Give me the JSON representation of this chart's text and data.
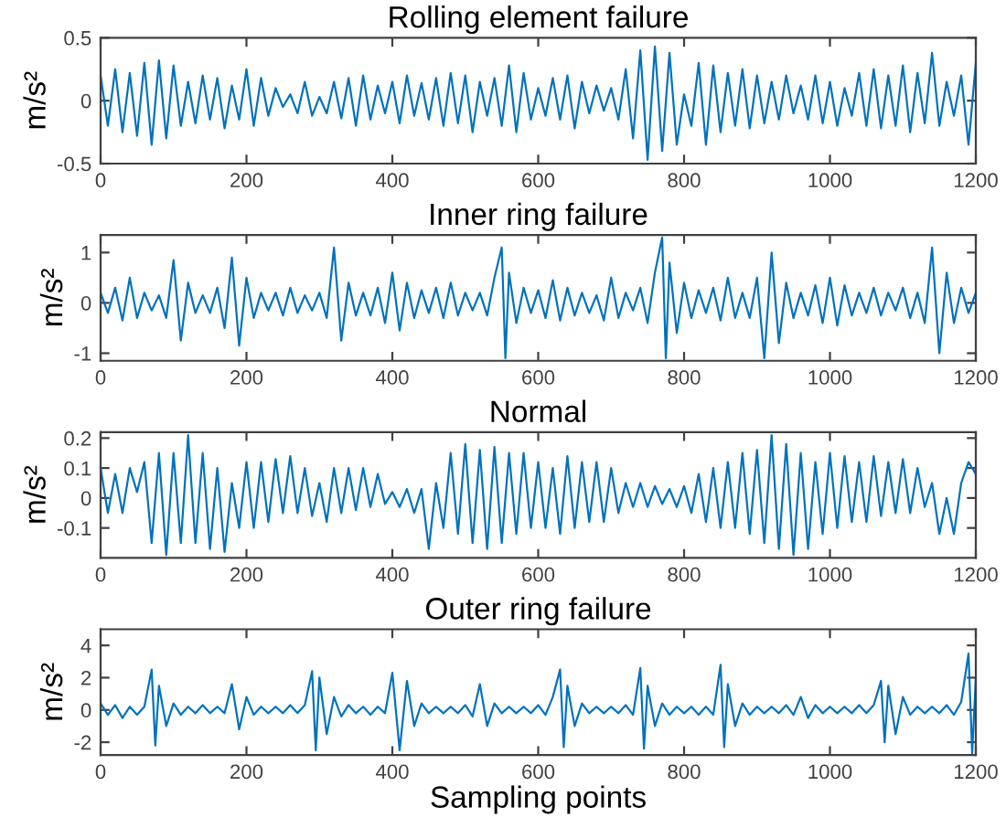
{
  "chart_data": [
    {
      "type": "line",
      "title": "Rolling element failure",
      "ylabel": "m/s²",
      "xlim": [
        0,
        1200
      ],
      "ylim": [
        -0.5,
        0.5
      ],
      "xticks": [
        0,
        200,
        400,
        600,
        800,
        1000,
        1200
      ],
      "yticks": [
        -0.5,
        0,
        0.5
      ],
      "grid": false,
      "legend": false,
      "series": [
        {
          "color": "#0072bd",
          "x": [
            0,
            10,
            20,
            30,
            40,
            50,
            60,
            70,
            80,
            90,
            100,
            110,
            120,
            130,
            140,
            150,
            160,
            170,
            180,
            190,
            200,
            210,
            220,
            230,
            240,
            250,
            260,
            270,
            280,
            290,
            300,
            310,
            320,
            330,
            340,
            350,
            360,
            370,
            380,
            390,
            400,
            410,
            420,
            430,
            440,
            450,
            460,
            470,
            480,
            490,
            500,
            510,
            520,
            530,
            540,
            550,
            560,
            570,
            580,
            590,
            600,
            610,
            620,
            630,
            640,
            650,
            660,
            670,
            680,
            690,
            700,
            710,
            720,
            730,
            740,
            750,
            760,
            770,
            780,
            790,
            800,
            810,
            820,
            830,
            840,
            850,
            860,
            870,
            880,
            890,
            900,
            910,
            920,
            930,
            940,
            950,
            960,
            970,
            980,
            990,
            1000,
            1010,
            1020,
            1030,
            1040,
            1050,
            1060,
            1070,
            1080,
            1090,
            1100,
            1110,
            1120,
            1130,
            1140,
            1150,
            1160,
            1170,
            1180,
            1190,
            1200
          ],
          "values": [
            0.2,
            -0.2,
            0.25,
            -0.25,
            0.22,
            -0.28,
            0.3,
            -0.35,
            0.32,
            -0.3,
            0.28,
            -0.2,
            0.15,
            -0.18,
            0.2,
            -0.15,
            0.18,
            -0.22,
            0.12,
            -0.15,
            0.25,
            -0.2,
            0.18,
            -0.12,
            0.1,
            -0.05,
            0.05,
            -0.1,
            0.15,
            -0.12,
            0.03,
            -0.1,
            0.15,
            -0.14,
            0.18,
            -0.2,
            0.2,
            -0.15,
            0.12,
            -0.1,
            0.15,
            -0.18,
            0.2,
            -0.12,
            0.14,
            -0.15,
            0.18,
            -0.2,
            0.22,
            -0.18,
            0.2,
            -0.25,
            0.15,
            -0.12,
            0.18,
            -0.2,
            0.28,
            -0.25,
            0.22,
            -0.15,
            0.1,
            -0.12,
            0.18,
            -0.15,
            0.2,
            -0.22,
            0.15,
            -0.1,
            0.12,
            -0.08,
            0.1,
            -0.15,
            0.25,
            -0.3,
            0.4,
            -0.47,
            0.43,
            -0.4,
            0.38,
            -0.35,
            0.05,
            -0.2,
            0.3,
            -0.35,
            0.28,
            -0.25,
            0.22,
            -0.2,
            0.25,
            -0.22,
            0.2,
            -0.18,
            0.15,
            -0.15,
            0.2,
            -0.1,
            0.12,
            -0.15,
            0.2,
            -0.18,
            0.15,
            -0.2,
            0.1,
            -0.12,
            0.22,
            -0.2,
            0.25,
            -0.22,
            0.2,
            -0.2,
            0.28,
            -0.25,
            0.22,
            -0.18,
            0.38,
            -0.2,
            0.15,
            -0.12,
            0.2,
            -0.35,
            0.3
          ]
        }
      ]
    },
    {
      "type": "line",
      "title": "Inner ring failure",
      "ylabel": "m/s²",
      "xlim": [
        0,
        1200
      ],
      "ylim": [
        -1.15,
        1.35
      ],
      "xticks": [
        0,
        200,
        400,
        600,
        800,
        1000,
        1200
      ],
      "yticks": [
        -1,
        0,
        1
      ],
      "grid": false,
      "legend": false,
      "series": [
        {
          "color": "#0072bd",
          "x": [
            0,
            10,
            20,
            30,
            40,
            50,
            60,
            70,
            80,
            90,
            100,
            110,
            120,
            130,
            140,
            150,
            160,
            170,
            180,
            190,
            200,
            210,
            220,
            230,
            240,
            250,
            260,
            270,
            280,
            290,
            300,
            310,
            320,
            330,
            340,
            350,
            360,
            370,
            380,
            390,
            400,
            410,
            420,
            430,
            440,
            450,
            460,
            470,
            480,
            490,
            500,
            510,
            520,
            530,
            540,
            550,
            555,
            560,
            570,
            580,
            590,
            600,
            610,
            620,
            630,
            640,
            650,
            660,
            670,
            680,
            690,
            700,
            710,
            720,
            730,
            740,
            750,
            760,
            770,
            775,
            780,
            790,
            800,
            810,
            820,
            830,
            840,
            850,
            860,
            870,
            880,
            890,
            900,
            910,
            920,
            930,
            940,
            950,
            960,
            970,
            980,
            990,
            1000,
            1010,
            1020,
            1030,
            1040,
            1050,
            1060,
            1070,
            1080,
            1090,
            1100,
            1110,
            1120,
            1130,
            1140,
            1150,
            1160,
            1170,
            1180,
            1190,
            1200
          ],
          "values": [
            0.2,
            -0.2,
            0.3,
            -0.35,
            0.5,
            -0.3,
            0.2,
            -0.15,
            0.15,
            -0.3,
            0.85,
            -0.75,
            0.4,
            -0.2,
            0.15,
            -0.2,
            0.3,
            -0.5,
            0.9,
            -0.85,
            0.5,
            -0.3,
            0.2,
            -0.15,
            0.2,
            -0.25,
            0.3,
            -0.2,
            0.15,
            -0.15,
            0.2,
            -0.3,
            1.1,
            -0.75,
            0.4,
            -0.25,
            0.2,
            -0.25,
            0.3,
            -0.4,
            0.6,
            -0.55,
            0.4,
            -0.3,
            0.25,
            -0.2,
            0.3,
            -0.3,
            0.4,
            -0.25,
            0.2,
            -0.15,
            0.2,
            -0.25,
            0.5,
            1.1,
            -1.1,
            0.6,
            -0.4,
            0.3,
            -0.2,
            0.25,
            -0.3,
            0.45,
            -0.35,
            0.3,
            -0.25,
            0.2,
            -0.2,
            0.15,
            -0.35,
            0.5,
            -0.3,
            0.2,
            -0.15,
            0.3,
            -0.4,
            0.6,
            1.3,
            -1.1,
            0.8,
            -0.6,
            0.4,
            -0.3,
            0.25,
            -0.2,
            0.3,
            -0.35,
            0.5,
            -0.3,
            0.2,
            -0.3,
            0.5,
            -1.1,
            1.0,
            -0.8,
            0.4,
            -0.3,
            0.2,
            -0.25,
            0.35,
            -0.4,
            0.5,
            -0.45,
            0.35,
            -0.25,
            0.2,
            -0.2,
            0.3,
            -0.25,
            0.2,
            -0.15,
            0.3,
            -0.3,
            0.2,
            -0.4,
            1.1,
            -1.0,
            0.6,
            -0.4,
            0.3,
            -0.2,
            0.2
          ]
        }
      ]
    },
    {
      "type": "line",
      "title": "Normal",
      "ylabel": "m/s²",
      "xlim": [
        0,
        1200
      ],
      "ylim": [
        -0.2,
        0.22
      ],
      "xticks": [
        0,
        200,
        400,
        600,
        800,
        1000,
        1200
      ],
      "yticks": [
        -0.1,
        0,
        0.1,
        0.2
      ],
      "grid": false,
      "legend": false,
      "series": [
        {
          "color": "#0072bd",
          "x": [
            0,
            10,
            20,
            30,
            40,
            50,
            60,
            70,
            80,
            90,
            100,
            110,
            120,
            130,
            140,
            150,
            160,
            170,
            180,
            190,
            200,
            210,
            220,
            230,
            240,
            250,
            260,
            270,
            280,
            290,
            300,
            310,
            320,
            330,
            340,
            350,
            360,
            370,
            380,
            390,
            400,
            410,
            420,
            430,
            440,
            450,
            460,
            470,
            480,
            490,
            500,
            510,
            520,
            530,
            540,
            550,
            560,
            570,
            580,
            590,
            600,
            610,
            620,
            630,
            640,
            650,
            660,
            670,
            680,
            690,
            700,
            710,
            720,
            730,
            740,
            750,
            760,
            770,
            780,
            790,
            800,
            810,
            820,
            830,
            840,
            850,
            860,
            870,
            880,
            890,
            900,
            910,
            920,
            930,
            940,
            950,
            960,
            970,
            980,
            990,
            1000,
            1010,
            1020,
            1030,
            1040,
            1050,
            1060,
            1070,
            1080,
            1090,
            1100,
            1110,
            1120,
            1130,
            1140,
            1150,
            1160,
            1170,
            1180,
            1190,
            1200
          ],
          "values": [
            0.1,
            -0.05,
            0.08,
            -0.05,
            0.1,
            0.02,
            0.12,
            -0.15,
            0.15,
            -0.19,
            0.15,
            -0.15,
            0.21,
            -0.15,
            0.15,
            -0.17,
            0.1,
            -0.18,
            0.05,
            -0.1,
            0.12,
            -0.1,
            0.12,
            -0.08,
            0.13,
            -0.05,
            0.14,
            -0.05,
            0.1,
            -0.06,
            0.05,
            -0.08,
            0.1,
            -0.05,
            0.1,
            -0.04,
            0.1,
            -0.03,
            0.08,
            -0.02,
            0.02,
            -0.03,
            0.03,
            -0.05,
            0.03,
            -0.17,
            0.05,
            -0.1,
            0.15,
            -0.12,
            0.18,
            -0.15,
            0.16,
            -0.17,
            0.17,
            -0.15,
            0.15,
            -0.12,
            0.15,
            -0.1,
            0.12,
            -0.1,
            0.1,
            -0.12,
            0.14,
            -0.1,
            0.12,
            -0.08,
            0.12,
            -0.08,
            0.1,
            -0.05,
            0.05,
            -0.03,
            0.05,
            -0.03,
            0.04,
            -0.02,
            0.03,
            -0.03,
            0.04,
            -0.05,
            0.08,
            -0.08,
            0.1,
            -0.1,
            0.12,
            -0.1,
            0.15,
            -0.12,
            0.16,
            -0.15,
            0.21,
            -0.17,
            0.18,
            -0.19,
            0.15,
            -0.17,
            0.12,
            -0.12,
            0.15,
            -0.1,
            0.14,
            -0.08,
            0.12,
            -0.08,
            0.14,
            -0.06,
            0.12,
            -0.05,
            0.13,
            -0.05,
            0.1,
            -0.03,
            0.05,
            -0.12,
            0.0,
            -0.12,
            0.05,
            0.12,
            0.08
          ]
        }
      ]
    },
    {
      "type": "line",
      "title": "Outer ring failure",
      "ylabel": "m/s²",
      "xlabel": "Sampling points",
      "xlim": [
        0,
        1200
      ],
      "ylim": [
        -2.8,
        5
      ],
      "xticks": [
        0,
        200,
        400,
        600,
        800,
        1000,
        1200
      ],
      "yticks": [
        -2,
        0,
        2,
        4
      ],
      "grid": false,
      "legend": false,
      "series": [
        {
          "color": "#0072bd",
          "x": [
            0,
            10,
            20,
            30,
            40,
            50,
            60,
            70,
            75,
            80,
            90,
            100,
            110,
            120,
            130,
            140,
            150,
            160,
            170,
            180,
            190,
            200,
            210,
            220,
            230,
            240,
            250,
            260,
            270,
            280,
            290,
            295,
            300,
            310,
            320,
            330,
            340,
            350,
            360,
            370,
            380,
            390,
            400,
            410,
            420,
            430,
            440,
            450,
            460,
            470,
            480,
            490,
            500,
            510,
            520,
            530,
            540,
            550,
            560,
            570,
            580,
            590,
            600,
            610,
            620,
            630,
            635,
            640,
            650,
            660,
            670,
            680,
            690,
            700,
            710,
            720,
            730,
            740,
            745,
            750,
            760,
            770,
            780,
            790,
            800,
            810,
            820,
            830,
            840,
            850,
            855,
            860,
            870,
            880,
            890,
            900,
            910,
            920,
            930,
            940,
            950,
            960,
            970,
            980,
            990,
            1000,
            1010,
            1020,
            1030,
            1040,
            1050,
            1060,
            1070,
            1075,
            1080,
            1090,
            1100,
            1110,
            1120,
            1130,
            1140,
            1150,
            1160,
            1170,
            1180,
            1190,
            1195,
            1200
          ],
          "values": [
            0.4,
            -0.3,
            0.3,
            -0.5,
            0.2,
            -0.3,
            0.2,
            2.5,
            -2.2,
            1.5,
            -1.0,
            0.4,
            -0.3,
            0.2,
            -0.2,
            0.3,
            -0.2,
            0.2,
            -0.2,
            1.6,
            -1.2,
            0.8,
            -0.3,
            0.2,
            -0.2,
            0.2,
            -0.2,
            0.3,
            -0.2,
            0.3,
            2.4,
            -2.5,
            2.0,
            -1.5,
            0.8,
            -0.4,
            0.3,
            -0.2,
            0.2,
            -0.3,
            0.2,
            -0.2,
            2.3,
            -2.5,
            1.8,
            -1.0,
            0.4,
            -0.2,
            0.2,
            -0.2,
            0.2,
            -0.2,
            0.3,
            -0.4,
            1.6,
            -1.0,
            0.4,
            -0.2,
            0.2,
            -0.2,
            0.2,
            -0.2,
            0.3,
            -0.3,
            0.8,
            2.5,
            -2.3,
            1.5,
            -1.0,
            0.4,
            -0.2,
            0.2,
            -0.2,
            0.2,
            -0.2,
            0.3,
            -0.3,
            2.6,
            -2.4,
            1.5,
            -1.0,
            0.4,
            -0.3,
            0.2,
            -0.2,
            0.2,
            -0.3,
            0.2,
            -0.3,
            2.8,
            -2.3,
            1.6,
            -1.0,
            0.4,
            -0.3,
            0.2,
            -0.2,
            0.2,
            -0.2,
            0.3,
            -0.3,
            0.8,
            -0.5,
            0.3,
            -0.2,
            0.2,
            -0.2,
            0.2,
            -0.2,
            0.3,
            -0.2,
            0.3,
            1.8,
            -2.0,
            1.5,
            -1.5,
            0.8,
            -0.3,
            0.2,
            -0.2,
            0.2,
            -0.2,
            0.3,
            -0.3,
            0.5,
            3.5,
            -2.7,
            2.0
          ]
        }
      ]
    }
  ]
}
